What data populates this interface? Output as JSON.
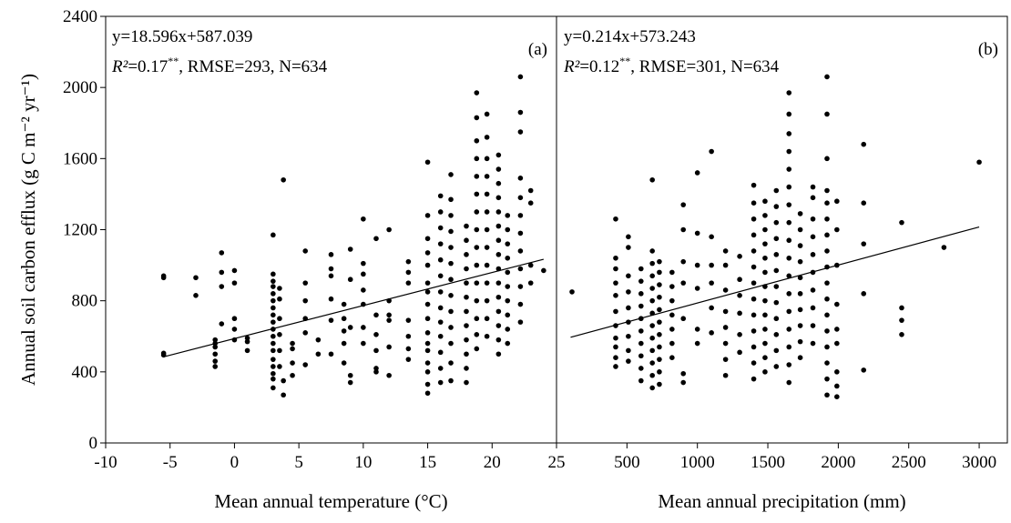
{
  "chart_data": [
    {
      "type": "scatter",
      "panel_label": "(a)",
      "xlabel": "Mean annual temperature (°C)",
      "ylabel": "Annual soil carbon efflux (g C m⁻² yr⁻¹)",
      "xlim": [
        -10,
        25
      ],
      "ylim": [
        0,
        2400
      ],
      "xticks": [
        -10,
        -5,
        0,
        5,
        10,
        15,
        20,
        25
      ],
      "yticks": [
        0,
        400,
        800,
        1200,
        1600,
        2000,
        2400
      ],
      "equation": "y=18.596x+587.039",
      "stats": {
        "r2_label": "R²",
        "r2": "=0.17",
        "significance": "**",
        "rest": ", RMSE=293, N=634"
      },
      "fit": {
        "slope": 18.596,
        "intercept": 587.039,
        "x_range": [
          -5.5,
          24
        ]
      },
      "clusters": [
        {
          "x": -5.5,
          "y": [
            495,
            505,
            930,
            940
          ]
        },
        {
          "x": -3,
          "y": [
            830,
            930
          ]
        },
        {
          "x": -1.5,
          "y": [
            430,
            460,
            500,
            540,
            560,
            580
          ]
        },
        {
          "x": -1,
          "y": [
            670,
            880,
            960,
            1070
          ]
        },
        {
          "x": 0,
          "y": [
            580,
            640,
            700,
            900,
            970
          ]
        },
        {
          "x": 1,
          "y": [
            520,
            570,
            590
          ]
        },
        {
          "x": 3,
          "y": [
            310,
            360,
            390,
            430,
            470,
            520,
            560,
            600,
            640,
            680,
            720,
            760,
            800,
            840,
            880,
            910,
            950,
            1170
          ]
        },
        {
          "x": 3.5,
          "y": [
            430,
            520,
            610,
            700,
            810,
            870
          ]
        },
        {
          "x": 3.8,
          "y": [
            270,
            350,
            1480
          ]
        },
        {
          "x": 4.5,
          "y": [
            380,
            450,
            530,
            560
          ]
        },
        {
          "x": 5.5,
          "y": [
            440,
            620,
            700,
            800,
            900,
            1080
          ]
        },
        {
          "x": 6.5,
          "y": [
            500,
            580
          ]
        },
        {
          "x": 7.5,
          "y": [
            500,
            690,
            810,
            940,
            980,
            1060
          ]
        },
        {
          "x": 8.5,
          "y": [
            450,
            560,
            630,
            700,
            780
          ]
        },
        {
          "x": 9,
          "y": [
            340,
            380,
            650,
            920,
            1090
          ]
        },
        {
          "x": 10,
          "y": [
            560,
            650,
            780,
            860,
            950,
            1010,
            1260
          ]
        },
        {
          "x": 11,
          "y": [
            400,
            420,
            520,
            610,
            720,
            1150
          ]
        },
        {
          "x": 12,
          "y": [
            380,
            540,
            690,
            720,
            800,
            1200
          ]
        },
        {
          "x": 13.5,
          "y": [
            470,
            530,
            600,
            690,
            900,
            960,
            1020
          ]
        },
        {
          "x": 15,
          "y": [
            280,
            330,
            400,
            450,
            520,
            560,
            620,
            700,
            780,
            850,
            900,
            1000,
            1070,
            1150,
            1280,
            1580
          ]
        },
        {
          "x": 16,
          "y": [
            340,
            420,
            510,
            600,
            680,
            760,
            850,
            940,
            1030,
            1120,
            1210,
            1300,
            1390
          ]
        },
        {
          "x": 16.8,
          "y": [
            350,
            450,
            560,
            650,
            740,
            830,
            920,
            1010,
            1100,
            1190,
            1280,
            1370,
            1510
          ]
        },
        {
          "x": 18,
          "y": [
            340,
            420,
            500,
            580,
            660,
            740,
            820,
            900,
            980,
            1060,
            1140,
            1220
          ]
        },
        {
          "x": 18.8,
          "y": [
            530,
            610,
            700,
            800,
            900,
            1000,
            1100,
            1200,
            1300,
            1400,
            1500,
            1600,
            1700,
            1830,
            1970
          ]
        },
        {
          "x": 19.6,
          "y": [
            600,
            700,
            800,
            900,
            1000,
            1100,
            1200,
            1300,
            1400,
            1500,
            1600,
            1720,
            1850
          ]
        },
        {
          "x": 20.5,
          "y": [
            500,
            580,
            660,
            740,
            820,
            900,
            980,
            1060,
            1140,
            1220,
            1300,
            1380,
            1460,
            1540,
            1620
          ]
        },
        {
          "x": 21.2,
          "y": [
            560,
            640,
            720,
            800,
            880,
            960,
            1040,
            1120,
            1200,
            1280
          ]
        },
        {
          "x": 22.2,
          "y": [
            680,
            780,
            880,
            980,
            1080,
            1180,
            1280,
            1380,
            1490,
            1750,
            1860,
            2060
          ]
        },
        {
          "x": 23,
          "y": [
            900,
            1000,
            1350,
            1420
          ]
        },
        {
          "x": 24,
          "y": [
            970
          ]
        }
      ]
    },
    {
      "type": "scatter",
      "panel_label": "(b)",
      "xlabel": "Mean annual precipitation (mm)",
      "xlim": [
        0,
        3200
      ],
      "ylim": [
        0,
        2400
      ],
      "xticks": [
        500,
        1000,
        1500,
        2000,
        2500,
        3000
      ],
      "equation": "y=0.214x+573.243",
      "stats": {
        "r2_label": "R²",
        "r2": "=0.12",
        "significance": "**",
        "rest": ", RMSE=301, N=634"
      },
      "fit": {
        "slope": 0.214,
        "intercept": 573.243,
        "x_range": [
          100,
          3000
        ]
      },
      "clusters": [
        {
          "x": 110,
          "y": [
            850
          ]
        },
        {
          "x": 420,
          "y": [
            430,
            480,
            540,
            590,
            660,
            740,
            830,
            900,
            980,
            1040,
            1260
          ]
        },
        {
          "x": 510,
          "y": [
            460,
            520,
            600,
            680,
            760,
            850,
            940,
            1100,
            1160
          ]
        },
        {
          "x": 600,
          "y": [
            350,
            420,
            490,
            560,
            630,
            700,
            770,
            840,
            910,
            980
          ]
        },
        {
          "x": 680,
          "y": [
            310,
            380,
            450,
            520,
            590,
            660,
            730,
            800,
            870,
            940,
            1010,
            1080,
            1480
          ]
        },
        {
          "x": 730,
          "y": [
            330,
            400,
            470,
            540,
            610,
            680,
            750,
            820,
            890,
            960,
            1020
          ]
        },
        {
          "x": 820,
          "y": [
            480,
            560,
            640,
            720,
            800,
            880,
            960
          ]
        },
        {
          "x": 900,
          "y": [
            340,
            390,
            700,
            900,
            1020,
            1200,
            1340
          ]
        },
        {
          "x": 1000,
          "y": [
            560,
            640,
            870,
            1000,
            1180,
            1520
          ]
        },
        {
          "x": 1100,
          "y": [
            620,
            760,
            900,
            1000,
            1160,
            1640
          ]
        },
        {
          "x": 1200,
          "y": [
            380,
            470,
            560,
            650,
            740,
            860,
            1000,
            1080
          ]
        },
        {
          "x": 1300,
          "y": [
            510,
            610,
            730,
            830,
            920,
            1050
          ]
        },
        {
          "x": 1400,
          "y": [
            360,
            450,
            540,
            630,
            720,
            810,
            900,
            990,
            1080,
            1170,
            1260,
            1350,
            1450
          ]
        },
        {
          "x": 1480,
          "y": [
            400,
            480,
            560,
            640,
            720,
            800,
            880,
            960,
            1040,
            1120,
            1200,
            1280,
            1360
          ]
        },
        {
          "x": 1560,
          "y": [
            430,
            520,
            610,
            700,
            790,
            880,
            970,
            1060,
            1150,
            1240,
            1330,
            1420
          ]
        },
        {
          "x": 1650,
          "y": [
            340,
            440,
            540,
            640,
            740,
            840,
            940,
            1040,
            1140,
            1240,
            1340,
            1440,
            1540,
            1640,
            1740,
            1850,
            1970
          ]
        },
        {
          "x": 1730,
          "y": [
            480,
            570,
            660,
            750,
            840,
            930,
            1020,
            1110,
            1200,
            1290
          ]
        },
        {
          "x": 1820,
          "y": [
            560,
            660,
            760,
            860,
            960,
            1060,
            1160,
            1260,
            1380,
            1440
          ]
        },
        {
          "x": 1920,
          "y": [
            270,
            360,
            450,
            540,
            630,
            720,
            810,
            900,
            990,
            1080,
            1170,
            1260,
            1350,
            1420,
            1600,
            1850,
            2060
          ]
        },
        {
          "x": 1990,
          "y": [
            260,
            320,
            400,
            560,
            640,
            780,
            1000,
            1200,
            1360
          ]
        },
        {
          "x": 2180,
          "y": [
            410,
            840,
            1120,
            1350,
            1680
          ]
        },
        {
          "x": 2450,
          "y": [
            610,
            690,
            760,
            1240
          ]
        },
        {
          "x": 2750,
          "y": [
            1100
          ]
        },
        {
          "x": 3000,
          "y": [
            1580
          ]
        }
      ]
    }
  ]
}
